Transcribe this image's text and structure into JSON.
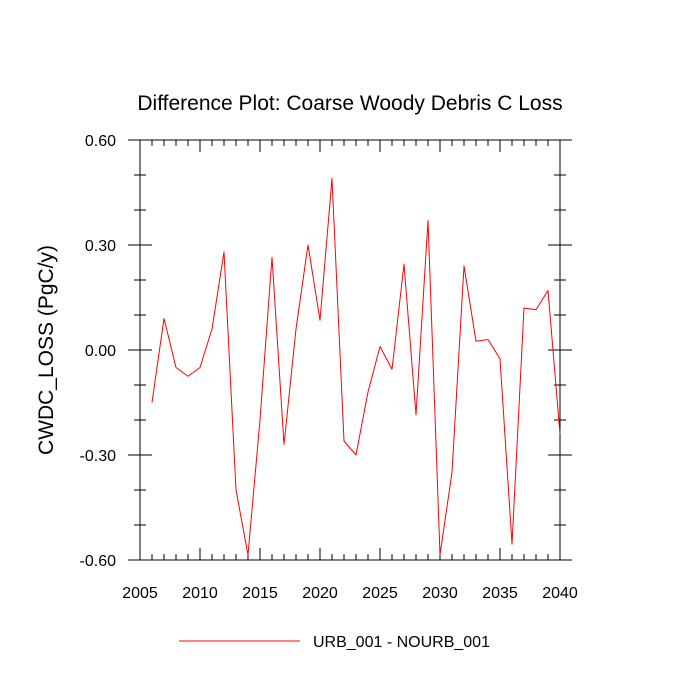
{
  "chart_data": {
    "type": "line",
    "title": "Difference Plot: Coarse Woody Debris C Loss",
    "xlabel": "",
    "ylabel": "CWDC_LOSS  (PgC/y)",
    "xlim": [
      2006,
      2040
    ],
    "ylim": [
      -0.6,
      0.6
    ],
    "x_ticks": [
      2005,
      2010,
      2015,
      2020,
      2025,
      2030,
      2035,
      2040
    ],
    "x_tick_labels": [
      "2005",
      "2010",
      "2015",
      "2020",
      "2025",
      "2030",
      "2035",
      "2040"
    ],
    "y_ticks": [
      -0.6,
      -0.3,
      0.0,
      0.3,
      0.6
    ],
    "y_tick_labels": [
      "-0.60",
      "-0.30",
      "0.00",
      "0.30",
      "0.60"
    ],
    "grid": false,
    "legend_position": "bottom-center",
    "series": [
      {
        "name": "URB_001 - NOURB_001",
        "color": "#ff0000",
        "x": [
          2006,
          2007,
          2008,
          2009,
          2010,
          2011,
          2012,
          2013,
          2014,
          2015,
          2016,
          2017,
          2018,
          2019,
          2020,
          2021,
          2022,
          2023,
          2024,
          2025,
          2026,
          2027,
          2028,
          2029,
          2030,
          2031,
          2032,
          2033,
          2034,
          2035,
          2036,
          2037,
          2038,
          2039,
          2040
        ],
        "values": [
          -0.15,
          0.09,
          -0.05,
          -0.075,
          -0.05,
          0.06,
          0.28,
          -0.4,
          -0.585,
          -0.2,
          0.265,
          -0.27,
          0.06,
          0.3,
          0.085,
          0.49,
          -0.26,
          -0.3,
          -0.12,
          0.01,
          -0.055,
          0.245,
          -0.185,
          0.37,
          -0.585,
          -0.35,
          0.24,
          0.025,
          0.03,
          -0.025,
          -0.555,
          0.12,
          0.115,
          0.17,
          -0.24
        ]
      }
    ]
  }
}
